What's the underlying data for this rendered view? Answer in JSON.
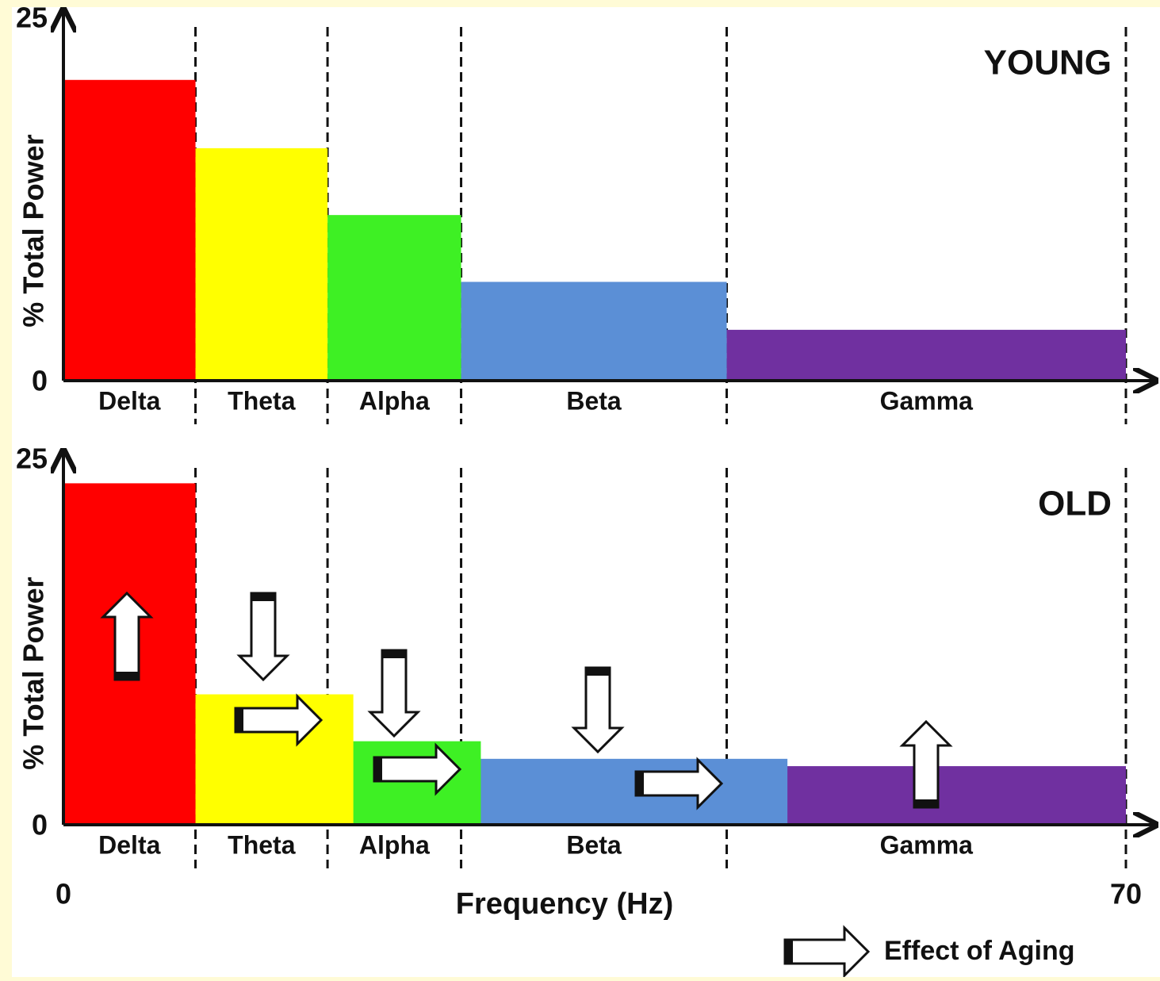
{
  "chart_data": [
    {
      "type": "bar",
      "annotation": "YOUNG",
      "y_label": "% Total Power",
      "categories": [
        "Delta",
        "Theta",
        "Alpha",
        "Beta",
        "Gamma"
      ],
      "values": [
        20.7,
        16.0,
        11.4,
        6.8,
        3.5
      ],
      "x_ranges": [
        [
          0,
          8.7
        ],
        [
          8.7,
          17.4
        ],
        [
          17.4,
          26.2
        ],
        [
          26.2,
          43.7
        ],
        [
          43.7,
          70
        ]
      ],
      "colors": [
        "#ff0000",
        "#ffff00",
        "#3ef024",
        "#5b8fd6",
        "#7030a0"
      ],
      "band_edges": [
        0,
        8.7,
        17.4,
        26.2,
        43.7,
        70
      ],
      "xlim": [
        0,
        70
      ],
      "ylim": [
        0,
        25
      ],
      "yticks": [
        0,
        25
      ]
    },
    {
      "type": "bar",
      "annotation": "OLD",
      "y_label": "% Total Power",
      "categories": [
        "Delta",
        "Theta",
        "Alpha",
        "Beta",
        "Gamma"
      ],
      "values": [
        23.3,
        8.9,
        5.7,
        4.5,
        4.0
      ],
      "x_ranges": [
        [
          0,
          8.7
        ],
        [
          8.7,
          19.1
        ],
        [
          17.4,
          27.5
        ],
        [
          26.2,
          47.7
        ],
        [
          43.7,
          70
        ]
      ],
      "colors": [
        "#ff0000",
        "#ffff00",
        "#3ef024",
        "#5b8fd6",
        "#7030a0"
      ],
      "band_edges": [
        0,
        8.7,
        17.4,
        26.2,
        43.7,
        70
      ],
      "xlim": [
        0,
        70
      ],
      "ylim": [
        0,
        25
      ],
      "yticks": [
        0,
        25
      ],
      "xticks": [
        0,
        70
      ],
      "x_label": "Frequency (Hz)",
      "legend_label": "Effect of Aging"
    }
  ]
}
